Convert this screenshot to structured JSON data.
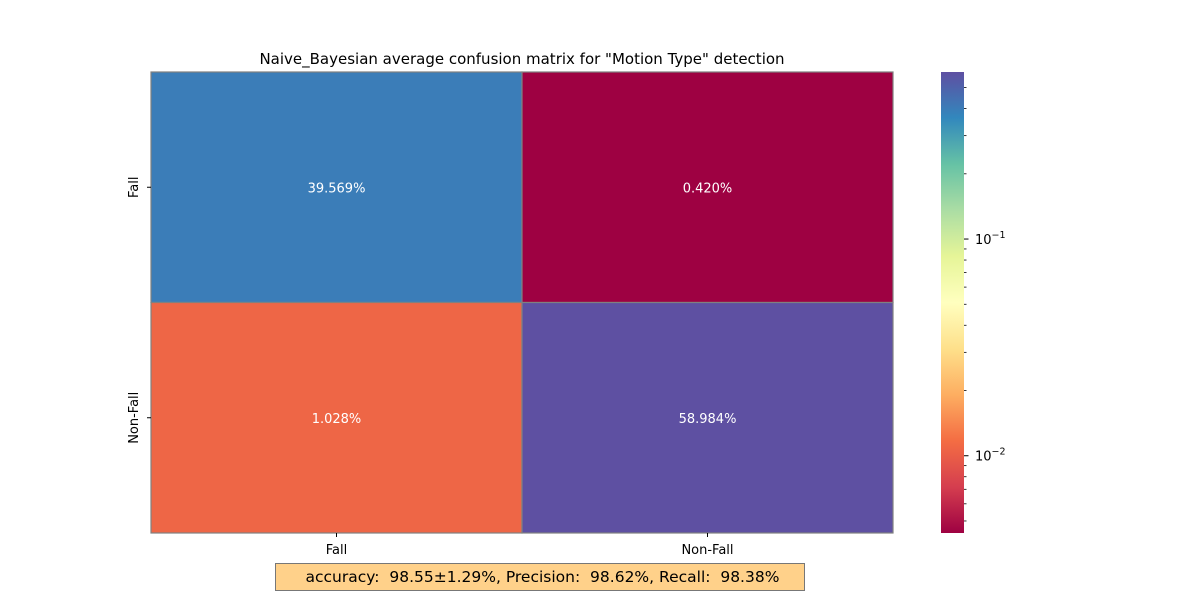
{
  "chart_data": {
    "type": "heatmap",
    "title": "Naive_Bayesian average confusion matrix for \"Motion Type\" detection",
    "row_labels": [
      "Fall",
      "Non-Fall"
    ],
    "col_labels": [
      "Fall",
      "Non-Fall"
    ],
    "values": [
      [
        39.569,
        0.42
      ],
      [
        1.028,
        58.984
      ]
    ],
    "cell_labels": [
      [
        "39.569%",
        "0.420%"
      ],
      [
        "1.028%",
        "58.984%"
      ]
    ],
    "cell_colors": [
      [
        "#3b7db8",
        "#9e0142"
      ],
      [
        "#ee6646",
        "#5e50a2"
      ]
    ],
    "colorbar": {
      "scale": "log",
      "range": [
        0.0044,
        0.59
      ],
      "colormap": "Spectral",
      "major_ticks": [
        0.01,
        0.1
      ],
      "major_tick_labels": [
        "10",
        "10"
      ],
      "major_tick_exponents": [
        "−2",
        "−1"
      ]
    }
  },
  "summary": {
    "text": " accuracy:  98.55±1.29%, Precision:  98.62%, Recall:  98.38%",
    "background": "#ffd18a"
  }
}
